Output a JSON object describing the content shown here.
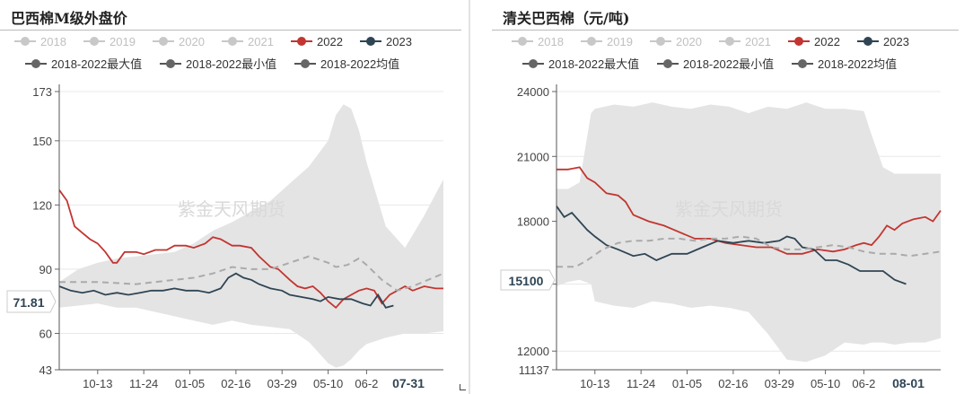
{
  "charts": [
    {
      "title": "巴西棉M级外盘价",
      "watermark": "紫金天风期货",
      "legend_row1": [
        "2018",
        "2019",
        "2020",
        "2021",
        "2022",
        "2023"
      ],
      "legend_row2": [
        "2018-2022最大值",
        "2018-2022最小值",
        "2018-2022均值"
      ],
      "current_value_label": "71.81",
      "current_date_label": "07-31"
    },
    {
      "title": "清关巴西棉（元/吨)",
      "watermark": "紫金天风期货",
      "legend_row1": [
        "2018",
        "2019",
        "2020",
        "2021",
        "2022",
        "2023"
      ],
      "legend_row2": [
        "2018-2022最大值",
        "2018-2022最小值",
        "2018-2022均值"
      ],
      "current_value_label": "15100",
      "current_date_label": "08-01"
    }
  ],
  "colors": {
    "faded_year": "#c8c8c8",
    "y2022": "#c23531",
    "y2023": "#2f4554",
    "band": "#e4e4e4",
    "avg": "#aaaaaa",
    "grid": "#e8e8e8"
  },
  "chart_data": [
    {
      "type": "line",
      "title": "巴西棉M级外盘价",
      "y_ticks": [
        43,
        60,
        90,
        120,
        150,
        173
      ],
      "ylim": [
        43,
        173
      ],
      "x_ticks": [
        "10-13",
        "11-24",
        "01-05",
        "02-16",
        "03-29",
        "05-10",
        "06-2"
      ],
      "x_index_range": [
        0,
        100
      ],
      "x_tick_index": [
        10,
        22,
        34,
        46,
        58,
        70,
        80
      ],
      "band": {
        "x": [
          0,
          5,
          10,
          15,
          20,
          25,
          30,
          35,
          40,
          45,
          50,
          55,
          60,
          65,
          70,
          72,
          74,
          76,
          78,
          80,
          85,
          90,
          95,
          100
        ],
        "max": [
          84,
          90,
          93,
          95,
          96,
          97,
          98,
          102,
          108,
          112,
          117,
          122,
          130,
          138,
          150,
          162,
          167,
          165,
          155,
          140,
          110,
          100,
          115,
          132
        ],
        "min": [
          72,
          73,
          74,
          72,
          72,
          70,
          68,
          66,
          64,
          66,
          64,
          63,
          62,
          56,
          46,
          44,
          45,
          48,
          52,
          55,
          58,
          60,
          60,
          61
        ]
      },
      "series": [
        {
          "name": "2022",
          "x": [
            0,
            2,
            4,
            6,
            8,
            10,
            12,
            14,
            15,
            17,
            20,
            22,
            25,
            28,
            30,
            33,
            35,
            38,
            40,
            42,
            45,
            47,
            50,
            52,
            55,
            57,
            60,
            62,
            64,
            66,
            68,
            70,
            72,
            74,
            76,
            78,
            80,
            82,
            84,
            86,
            88,
            90,
            92,
            95,
            98,
            100
          ],
          "values": [
            127,
            122,
            110,
            107,
            104,
            102,
            98,
            93,
            93,
            98,
            98,
            97,
            99,
            99,
            101,
            101,
            100,
            102,
            105,
            104,
            101,
            101,
            100,
            96,
            91,
            90,
            85,
            82,
            81,
            82,
            79,
            75,
            72,
            76,
            78,
            80,
            81,
            80,
            74,
            78,
            80,
            82,
            80,
            82,
            81,
            81
          ]
        },
        {
          "name": "2023",
          "x": [
            0,
            3,
            6,
            9,
            12,
            15,
            18,
            21,
            24,
            27,
            30,
            33,
            36,
            39,
            42,
            44,
            46,
            48,
            50,
            52,
            55,
            58,
            60,
            63,
            66,
            68,
            70,
            73,
            76,
            79,
            81,
            83,
            85,
            87
          ],
          "values": [
            82,
            80,
            79,
            80,
            78,
            79,
            78,
            79,
            80,
            80,
            81,
            80,
            80,
            79,
            81,
            86,
            88,
            86,
            85,
            83,
            81,
            80,
            78,
            77,
            76,
            75,
            77,
            76,
            76,
            74,
            73,
            78,
            72,
            73
          ]
        },
        {
          "name": "2018-2022均值",
          "x": [
            0,
            10,
            20,
            30,
            35,
            40,
            45,
            50,
            55,
            60,
            65,
            70,
            72,
            75,
            78,
            80,
            84,
            88,
            92,
            96,
            100
          ],
          "values": [
            84,
            84,
            83,
            85,
            86,
            88,
            91,
            90,
            90,
            93,
            96,
            93,
            91,
            92,
            95,
            92,
            85,
            80,
            82,
            85,
            88
          ]
        }
      ]
    },
    {
      "type": "line",
      "title": "清关巴西棉（元/吨)",
      "y_ticks": [
        11137,
        12000,
        15100,
        18000,
        21000,
        24000
      ],
      "ylim": [
        11137,
        24000
      ],
      "x_ticks": [
        "10-13",
        "11-24",
        "01-05",
        "02-16",
        "03-29",
        "05-10",
        "06-2"
      ],
      "x_index_range": [
        0,
        100
      ],
      "x_tick_index": [
        10,
        22,
        34,
        46,
        58,
        70,
        80
      ],
      "band": {
        "x": [
          0,
          3,
          6,
          9,
          10,
          15,
          20,
          25,
          30,
          35,
          40,
          45,
          50,
          55,
          60,
          65,
          70,
          75,
          80,
          82,
          85,
          88,
          92,
          96,
          100
        ],
        "max": [
          19500,
          19500,
          19800,
          23000,
          23200,
          23400,
          23300,
          23500,
          23300,
          23200,
          23400,
          23300,
          23000,
          23300,
          23200,
          23500,
          23200,
          23200,
          23100,
          22000,
          20500,
          20200,
          20200,
          20200,
          20200
        ],
        "min": [
          15000,
          15200,
          15300,
          15100,
          14300,
          14100,
          14000,
          14300,
          14200,
          14000,
          14100,
          14000,
          13800,
          12800,
          11600,
          11500,
          11800,
          12400,
          12300,
          12400,
          12400,
          12300,
          12400,
          12400,
          12600
        ]
      },
      "series": [
        {
          "name": "2022",
          "x": [
            0,
            3,
            6,
            8,
            10,
            13,
            16,
            18,
            20,
            24,
            28,
            32,
            36,
            40,
            44,
            48,
            52,
            56,
            60,
            64,
            68,
            72,
            75,
            78,
            80,
            82,
            84,
            86,
            88,
            90,
            93,
            96,
            98,
            100
          ],
          "values": [
            20400,
            20400,
            20500,
            20000,
            19800,
            19300,
            19200,
            18900,
            18300,
            18000,
            17800,
            17500,
            17200,
            17200,
            17000,
            16900,
            16800,
            16800,
            16500,
            16500,
            16700,
            16600,
            16700,
            16900,
            17000,
            16900,
            17300,
            17800,
            17600,
            17900,
            18100,
            18200,
            18000,
            18500
          ]
        },
        {
          "name": "2023",
          "x": [
            0,
            2,
            4,
            6,
            8,
            10,
            13,
            16,
            20,
            23,
            26,
            30,
            34,
            38,
            42,
            46,
            50,
            54,
            58,
            60,
            62,
            64,
            67,
            70,
            73,
            76,
            79,
            82,
            85,
            88,
            91
          ],
          "values": [
            18700,
            18200,
            18400,
            18000,
            17600,
            17300,
            16900,
            16700,
            16400,
            16500,
            16200,
            16500,
            16500,
            16800,
            17100,
            17000,
            17100,
            17000,
            17100,
            17300,
            17200,
            16800,
            16700,
            16200,
            16200,
            16000,
            15700,
            15700,
            15700,
            15300,
            15100
          ]
        },
        {
          "name": "2018-2022均值",
          "x": [
            0,
            5,
            8,
            12,
            16,
            20,
            24,
            28,
            32,
            36,
            40,
            44,
            48,
            52,
            56,
            60,
            64,
            68,
            72,
            76,
            80,
            84,
            88,
            92,
            96,
            100
          ],
          "values": [
            15900,
            15900,
            16200,
            16700,
            17000,
            17100,
            17100,
            17200,
            17200,
            17100,
            17200,
            17200,
            17300,
            17200,
            16800,
            16700,
            16700,
            16800,
            16900,
            16800,
            16600,
            16500,
            16500,
            16400,
            16500,
            16600
          ]
        }
      ]
    }
  ]
}
